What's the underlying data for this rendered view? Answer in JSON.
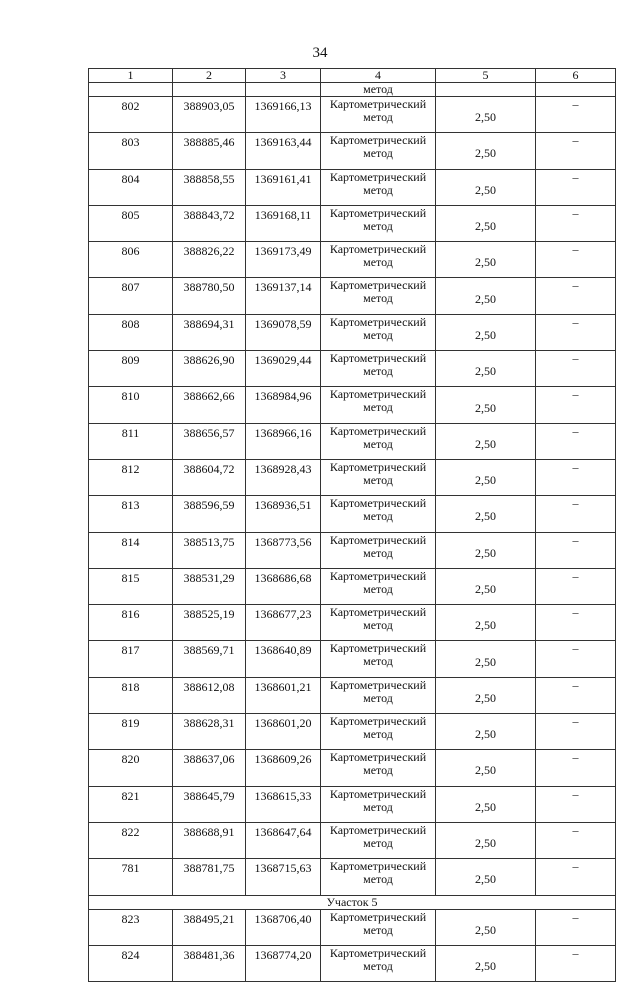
{
  "page_number": "34",
  "headers": [
    "1",
    "2",
    "3",
    "4",
    "5",
    "6"
  ],
  "continuation_text": "метод",
  "rows_before": [
    [
      "802",
      "388903,05",
      "1369166,13",
      "Картометрический метод",
      "2,50",
      "–"
    ],
    [
      "803",
      "388885,46",
      "1369163,44",
      "Картометрический метод",
      "2,50",
      "–"
    ],
    [
      "804",
      "388858,55",
      "1369161,41",
      "Картометрический метод",
      "2,50",
      "–"
    ],
    [
      "805",
      "388843,72",
      "1369168,11",
      "Картометрический метод",
      "2,50",
      "–"
    ],
    [
      "806",
      "388826,22",
      "1369173,49",
      "Картометрический метод",
      "2,50",
      "–"
    ],
    [
      "807",
      "388780,50",
      "1369137,14",
      "Картометрический метод",
      "2,50",
      "–"
    ],
    [
      "808",
      "388694,31",
      "1369078,59",
      "Картометрический метод",
      "2,50",
      "–"
    ],
    [
      "809",
      "388626,90",
      "1369029,44",
      "Картометрический метод",
      "2,50",
      "–"
    ],
    [
      "810",
      "388662,66",
      "1368984,96",
      "Картометрический метод",
      "2,50",
      "–"
    ],
    [
      "811",
      "388656,57",
      "1368966,16",
      "Картометрический метод",
      "2,50",
      "–"
    ],
    [
      "812",
      "388604,72",
      "1368928,43",
      "Картометрический метод",
      "2,50",
      "–"
    ],
    [
      "813",
      "388596,59",
      "1368936,51",
      "Картометрический метод",
      "2,50",
      "–"
    ],
    [
      "814",
      "388513,75",
      "1368773,56",
      "Картометрический метод",
      "2,50",
      "–"
    ],
    [
      "815",
      "388531,29",
      "1368686,68",
      "Картометрический метод",
      "2,50",
      "–"
    ],
    [
      "816",
      "388525,19",
      "1368677,23",
      "Картометрический метод",
      "2,50",
      "–"
    ],
    [
      "817",
      "388569,71",
      "1368640,89",
      "Картометрический метод",
      "2,50",
      "–"
    ],
    [
      "818",
      "388612,08",
      "1368601,21",
      "Картометрический метод",
      "2,50",
      "–"
    ],
    [
      "819",
      "388628,31",
      "1368601,20",
      "Картометрический метод",
      "2,50",
      "–"
    ],
    [
      "820",
      "388637,06",
      "1368609,26",
      "Картометрический метод",
      "2,50",
      "–"
    ],
    [
      "821",
      "388645,79",
      "1368615,33",
      "Картометрический метод",
      "2,50",
      "–"
    ],
    [
      "822",
      "388688,91",
      "1368647,64",
      "Картометрический метод",
      "2,50",
      "–"
    ],
    [
      "781",
      "388781,75",
      "1368715,63",
      "Картометрический метод",
      "2,50",
      "–"
    ]
  ],
  "section_title": "Участок 5",
  "rows_after": [
    [
      "823",
      "388495,21",
      "1368706,40",
      "Картометрический метод",
      "2,50",
      "–"
    ],
    [
      "824",
      "388481,36",
      "1368774,20",
      "Картометрический метод",
      "2,50",
      "–"
    ]
  ]
}
